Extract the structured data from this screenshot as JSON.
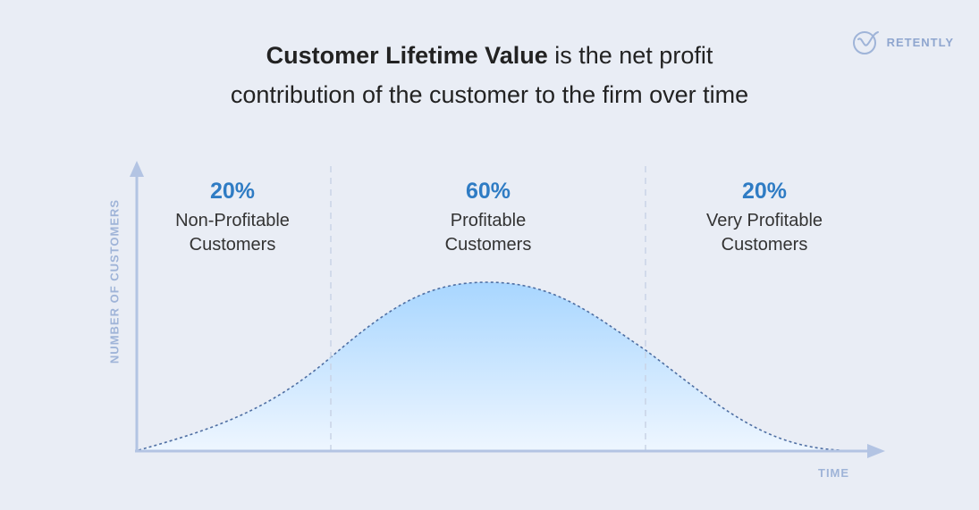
{
  "headline": {
    "bold": "Customer Lifetime Value",
    "rest_line1": " is the net profit",
    "line2": "contribution of the customer to the firm over time"
  },
  "brand": {
    "name": "RETENTLY",
    "icon": "retently-logo-icon"
  },
  "axes": {
    "y_label": "NUMBER OF CUSTOMERS",
    "x_label": "TIME"
  },
  "segments": [
    {
      "percent": "20%",
      "label_line1": "Non-Profitable",
      "label_line2": "Customers"
    },
    {
      "percent": "60%",
      "label_line1": "Profitable",
      "label_line2": "Customers"
    },
    {
      "percent": "20%",
      "label_line1": "Very Profitable",
      "label_line2": "Customers"
    }
  ],
  "colors": {
    "background": "#e9edf5",
    "axis": "#b3c4e3",
    "accent": "#2f7cc4",
    "curve_fill_top": "#a8d6ff",
    "curve_stroke": "#4f6fa3"
  }
}
